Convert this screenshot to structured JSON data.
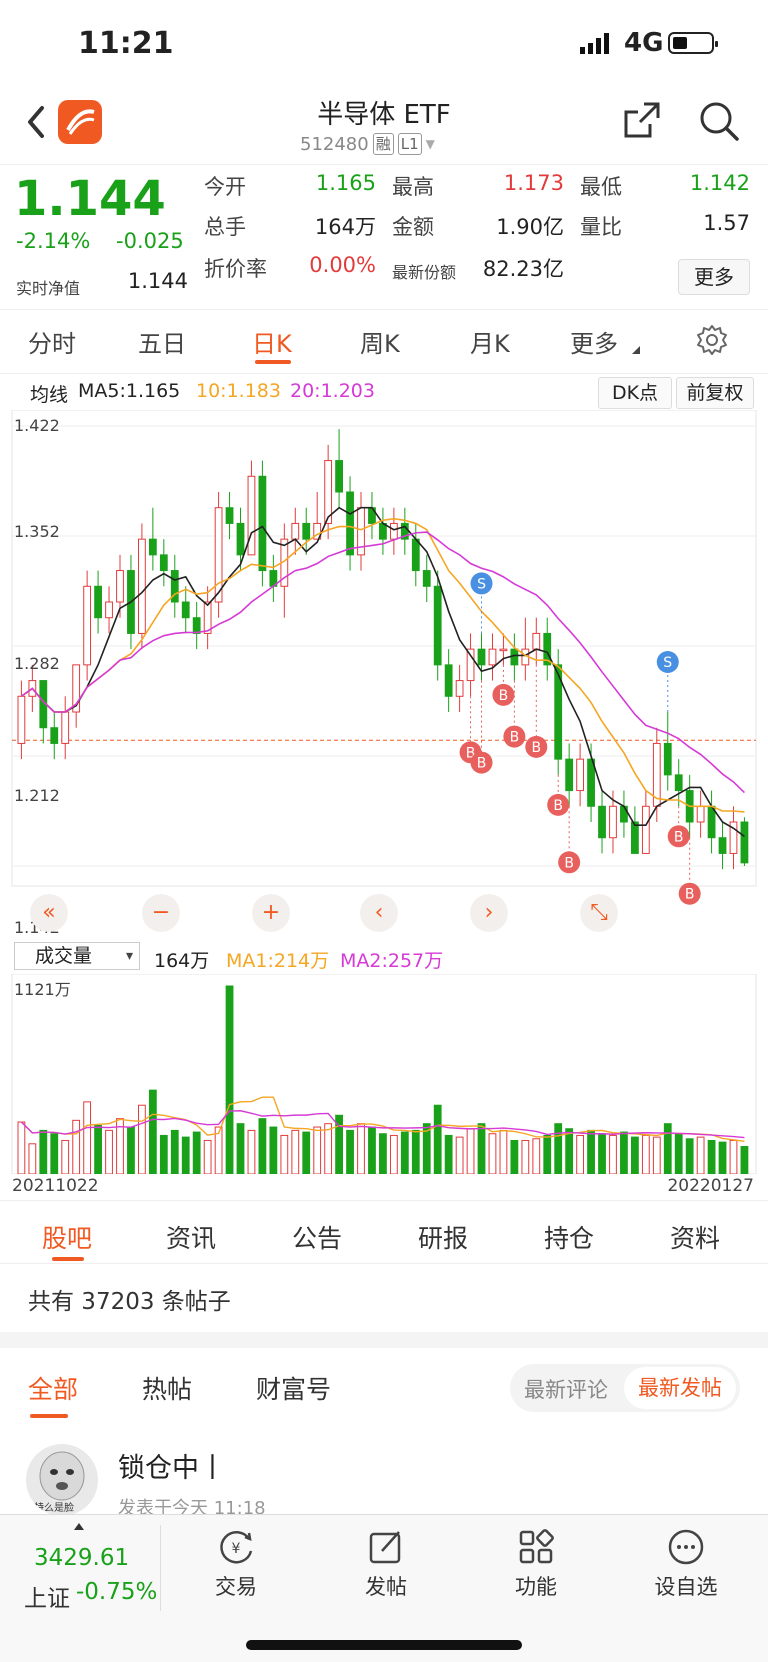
{
  "status": {
    "time": "11:21",
    "network": "4G"
  },
  "header": {
    "title": "半导体 ETF",
    "code": "512480",
    "tag1": "融",
    "tag2": "L1"
  },
  "quote": {
    "price": "1.144",
    "change_pct": "-2.14%",
    "change": "-0.025",
    "nav_label": "实时净值",
    "nav_value": "1.144",
    "cells": [
      {
        "label": "今开",
        "value": "1.165",
        "color": "#1aa11a"
      },
      {
        "label": "最高",
        "value": "1.173",
        "color": "#e23b3b"
      },
      {
        "label": "最低",
        "value": "1.142",
        "color": "#1aa11a"
      },
      {
        "label": "总手",
        "value": "164万",
        "color": "#222222"
      },
      {
        "label": "金额",
        "value": "1.90亿",
        "color": "#222222"
      },
      {
        "label": "量比",
        "value": "1.57",
        "color": "#222222"
      },
      {
        "label": "折价率",
        "value": "0.00%",
        "color": "#e23b3b"
      },
      {
        "label": "最新份额",
        "value": "82.23亿",
        "color": "#222222"
      }
    ],
    "more": "更多"
  },
  "period_tabs": [
    "分时",
    "五日",
    "日K",
    "周K",
    "月K",
    "更多"
  ],
  "ma": {
    "label": "均线",
    "ma5": "MA5:1.165",
    "ma10": "10:1.183",
    "ma20": "20:1.203",
    "btn_dk": "DK点",
    "btn_fq": "前复权"
  },
  "colors": {
    "up": "#e23b3b",
    "down": "#1aa11a",
    "ma5": "#222222",
    "ma10": "#f5a623",
    "ma20": "#d63ad6",
    "accent": "#f05a22",
    "buy": "#e8605e",
    "sell": "#4a90e2"
  },
  "chart_data": [
    {
      "type": "candlestick",
      "y_ticks": [
        "1.422",
        "1.352",
        "1.282",
        "1.212",
        "1.142"
      ],
      "ylim": [
        1.142,
        1.422
      ],
      "ref_line": 1.222,
      "candles": [
        [
          1.22,
          1.25,
          1.26,
          1.21
        ],
        [
          1.25,
          1.26,
          1.27,
          1.24
        ],
        [
          1.26,
          1.23,
          1.26,
          1.22
        ],
        [
          1.23,
          1.22,
          1.24,
          1.21
        ],
        [
          1.22,
          1.24,
          1.25,
          1.21
        ],
        [
          1.24,
          1.27,
          1.27,
          1.23
        ],
        [
          1.27,
          1.32,
          1.33,
          1.26
        ],
        [
          1.32,
          1.3,
          1.33,
          1.29
        ],
        [
          1.3,
          1.31,
          1.32,
          1.29
        ],
        [
          1.31,
          1.33,
          1.34,
          1.3
        ],
        [
          1.33,
          1.29,
          1.34,
          1.28
        ],
        [
          1.29,
          1.35,
          1.36,
          1.28
        ],
        [
          1.35,
          1.34,
          1.37,
          1.33
        ],
        [
          1.34,
          1.33,
          1.35,
          1.32
        ],
        [
          1.33,
          1.31,
          1.34,
          1.3
        ],
        [
          1.31,
          1.3,
          1.32,
          1.29
        ],
        [
          1.3,
          1.29,
          1.31,
          1.28
        ],
        [
          1.29,
          1.31,
          1.32,
          1.28
        ],
        [
          1.31,
          1.37,
          1.38,
          1.3
        ],
        [
          1.37,
          1.36,
          1.38,
          1.35
        ],
        [
          1.36,
          1.34,
          1.37,
          1.33
        ],
        [
          1.34,
          1.39,
          1.4,
          1.34
        ],
        [
          1.39,
          1.33,
          1.4,
          1.32
        ],
        [
          1.33,
          1.32,
          1.34,
          1.31
        ],
        [
          1.32,
          1.35,
          1.36,
          1.3
        ],
        [
          1.35,
          1.36,
          1.37,
          1.34
        ],
        [
          1.36,
          1.35,
          1.37,
          1.34
        ],
        [
          1.35,
          1.36,
          1.38,
          1.35
        ],
        [
          1.36,
          1.4,
          1.41,
          1.35
        ],
        [
          1.4,
          1.38,
          1.42,
          1.37
        ],
        [
          1.38,
          1.34,
          1.39,
          1.33
        ],
        [
          1.34,
          1.37,
          1.38,
          1.33
        ],
        [
          1.37,
          1.36,
          1.38,
          1.35
        ],
        [
          1.36,
          1.35,
          1.37,
          1.34
        ],
        [
          1.35,
          1.36,
          1.37,
          1.34
        ],
        [
          1.36,
          1.35,
          1.37,
          1.34
        ],
        [
          1.35,
          1.33,
          1.36,
          1.32
        ],
        [
          1.33,
          1.32,
          1.34,
          1.31
        ],
        [
          1.32,
          1.27,
          1.33,
          1.26
        ],
        [
          1.27,
          1.25,
          1.28,
          1.24
        ],
        [
          1.25,
          1.26,
          1.27,
          1.24
        ],
        [
          1.26,
          1.28,
          1.29,
          1.25
        ],
        [
          1.28,
          1.27,
          1.29,
          1.26
        ],
        [
          1.27,
          1.28,
          1.29,
          1.26
        ],
        [
          1.28,
          1.28,
          1.29,
          1.27
        ],
        [
          1.28,
          1.27,
          1.29,
          1.26
        ],
        [
          1.27,
          1.28,
          1.3,
          1.26
        ],
        [
          1.28,
          1.29,
          1.3,
          1.27
        ],
        [
          1.29,
          1.27,
          1.3,
          1.26
        ],
        [
          1.27,
          1.21,
          1.28,
          1.2
        ],
        [
          1.21,
          1.19,
          1.22,
          1.18
        ],
        [
          1.19,
          1.21,
          1.22,
          1.18
        ],
        [
          1.21,
          1.18,
          1.22,
          1.17
        ],
        [
          1.18,
          1.16,
          1.19,
          1.15
        ],
        [
          1.16,
          1.18,
          1.19,
          1.15
        ],
        [
          1.18,
          1.17,
          1.19,
          1.16
        ],
        [
          1.17,
          1.15,
          1.18,
          1.15
        ],
        [
          1.15,
          1.18,
          1.19,
          1.15
        ],
        [
          1.18,
          1.22,
          1.23,
          1.17
        ],
        [
          1.22,
          1.2,
          1.24,
          1.19
        ],
        [
          1.2,
          1.19,
          1.21,
          1.18
        ],
        [
          1.19,
          1.17,
          1.2,
          1.16
        ],
        [
          1.17,
          1.18,
          1.19,
          1.16
        ],
        [
          1.18,
          1.16,
          1.19,
          1.15
        ],
        [
          1.16,
          1.15,
          1.17,
          1.14
        ],
        [
          1.15,
          1.17,
          1.18,
          1.14
        ],
        [
          1.17,
          1.144,
          1.173,
          1.142
        ]
      ],
      "signals": [
        {
          "i": 42,
          "t": "S"
        },
        {
          "i": 41,
          "t": "B"
        },
        {
          "i": 42,
          "t": "B"
        },
        {
          "i": 44,
          "t": "B"
        },
        {
          "i": 45,
          "t": "B"
        },
        {
          "i": 47,
          "t": "B"
        },
        {
          "i": 49,
          "t": "B"
        },
        {
          "i": 50,
          "t": "B"
        },
        {
          "i": 59,
          "t": "S"
        },
        {
          "i": 60,
          "t": "B"
        },
        {
          "i": 61,
          "t": "B"
        }
      ]
    },
    {
      "type": "bar",
      "title": "成交量",
      "current": "164万",
      "ma1": "MA1:214万",
      "ma2": "MA2:257万",
      "max_label": "1121万",
      "start_date": "20211022",
      "end_date": "20220127",
      "ylim": [
        0,
        1121
      ]
    }
  ],
  "chart_controls": [
    "«",
    "−",
    "+",
    "‹",
    "›",
    "⤡"
  ],
  "info_tabs": [
    "股吧",
    "资讯",
    "公告",
    "研报",
    "持仓",
    "资料"
  ],
  "post_count": "共有 37203 条帖子",
  "forum_tabs": [
    "全部",
    "热帖",
    "财富号"
  ],
  "sort": {
    "opt1": "最新评论",
    "opt2": "最新发帖"
  },
  "post": {
    "title": "锁仓中丨",
    "meta": "发表于今天 11:18",
    "avatar_text": "特么是脸"
  },
  "bottom": {
    "index_value": "3429.61",
    "index_name": "上证",
    "index_change": "-0.75%",
    "items": [
      "交易",
      "发帖",
      "功能",
      "设自选"
    ]
  }
}
